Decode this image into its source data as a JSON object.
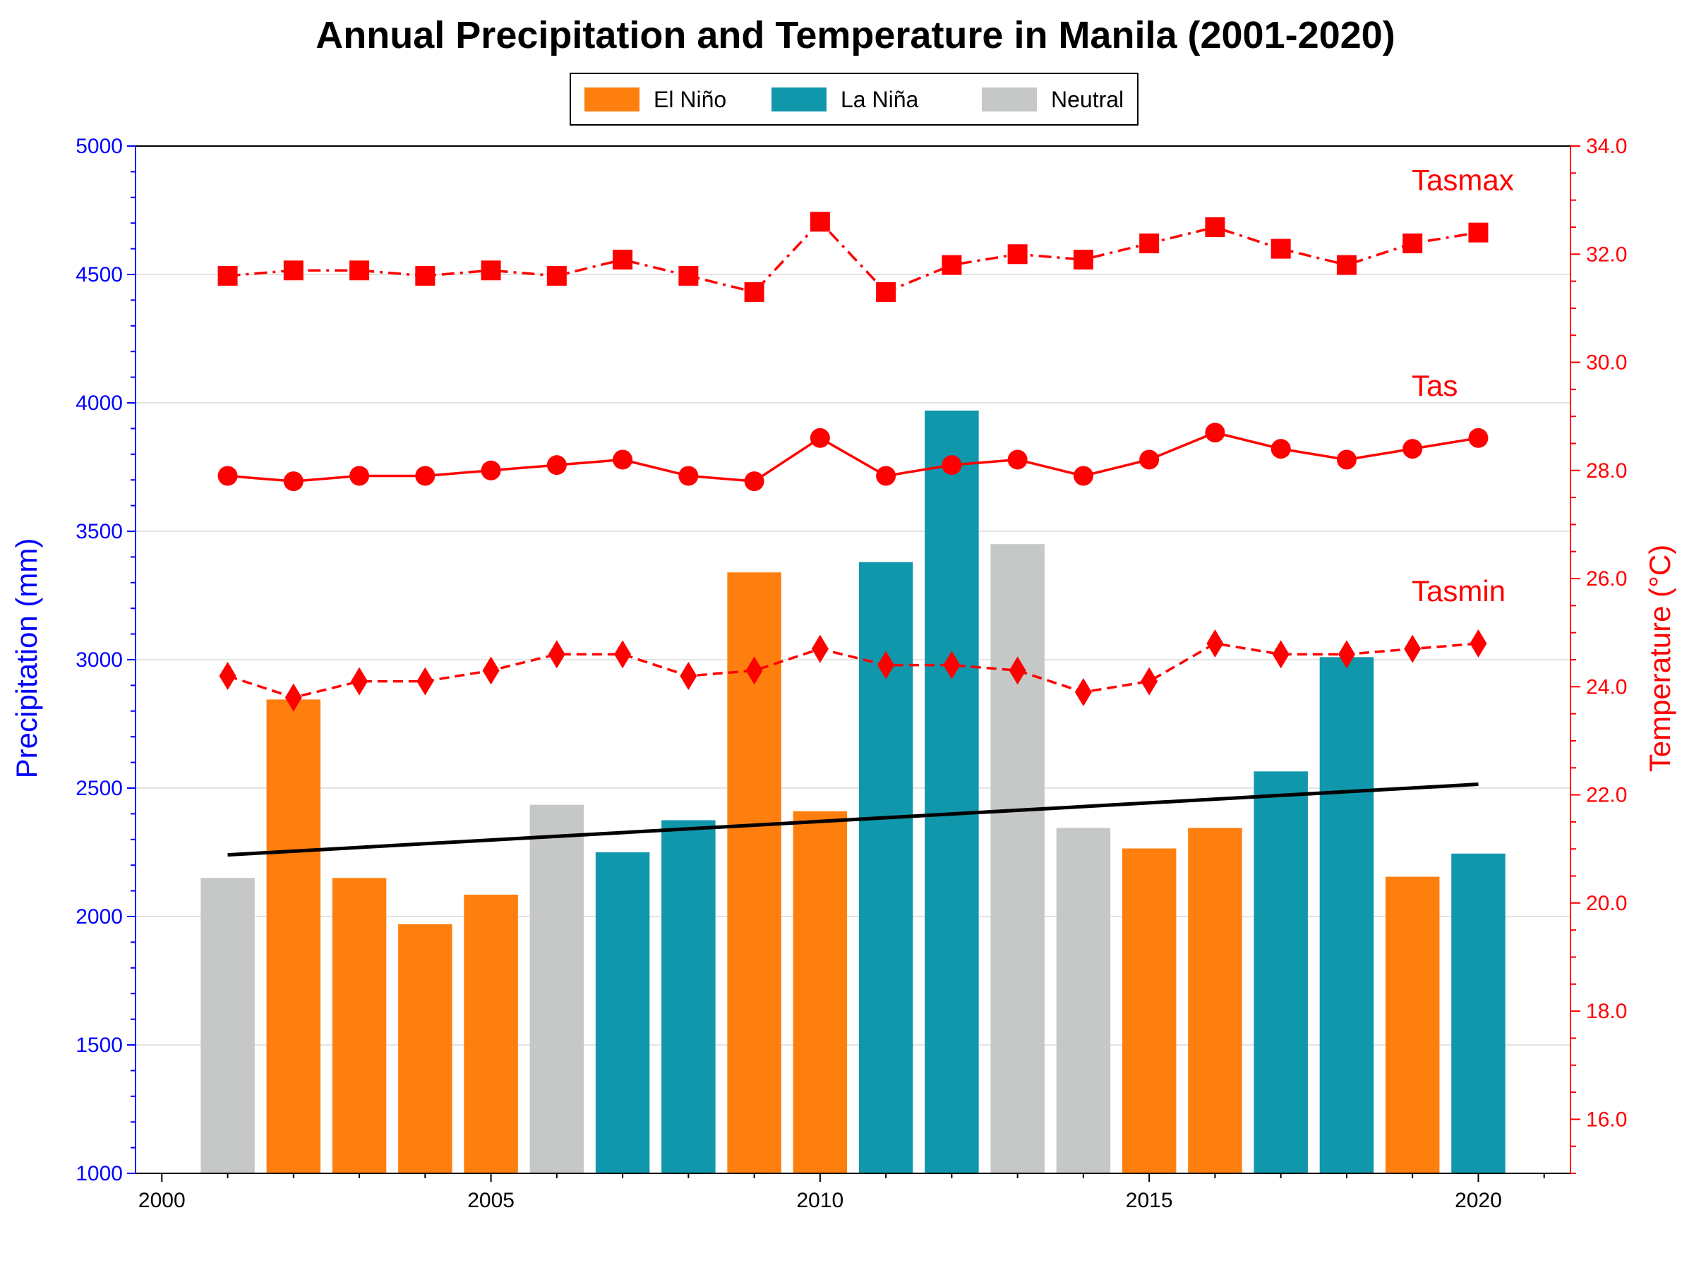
{
  "chart_data": {
    "type": "bar",
    "title": "Annual Precipitation and Temperature in Manila (2001-2020)",
    "x": [
      2001,
      2002,
      2003,
      2004,
      2005,
      2006,
      2007,
      2008,
      2009,
      2010,
      2011,
      2012,
      2013,
      2014,
      2015,
      2016,
      2017,
      2018,
      2019,
      2020
    ],
    "xlim": [
      1999.6,
      2021.4
    ],
    "x_ticks": [
      2000,
      2005,
      2010,
      2015,
      2020
    ],
    "y_left": {
      "label": "Precipitation (mm)",
      "lim": [
        1000,
        5000
      ],
      "ticks": [
        1000,
        1500,
        2000,
        2500,
        3000,
        3500,
        4000,
        4500,
        5000
      ],
      "color": "#0000ff"
    },
    "y_right": {
      "label": "Temperature (°C)",
      "lim": [
        15,
        34
      ],
      "ticks": [
        "16.0",
        "18.0",
        "20.0",
        "22.0",
        "24.0",
        "26.0",
        "28.0",
        "30.0",
        "32.0",
        "34.0"
      ],
      "color": "#ff0000"
    },
    "grid": "horizontal",
    "legend_position": "top-center",
    "categories": {
      "El Niño": "#ff7f0e",
      "La Niña": "#1197ac",
      "Neutral": "#c5c8c7"
    },
    "legend": [
      "El Niño",
      "La Niña",
      "Neutral"
    ],
    "precipitation": [
      2150,
      2845,
      2150,
      1970,
      2085,
      2435,
      2250,
      2375,
      3340,
      2410,
      3380,
      3970,
      3450,
      2345,
      2265,
      2345,
      2565,
      3010,
      2155,
      2245
    ],
    "enso_phase": [
      "Neutral",
      "El Niño",
      "El Niño",
      "El Niño",
      "El Niño",
      "Neutral",
      "La Niña",
      "La Niña",
      "El Niño",
      "El Niño",
      "La Niña",
      "La Niña",
      "Neutral",
      "Neutral",
      "El Niño",
      "El Niño",
      "La Niña",
      "La Niña",
      "El Niño",
      "La Niña"
    ],
    "trend_line": {
      "x": [
        2001,
        2020
      ],
      "y": [
        2240,
        2515
      ],
      "color": "#000000"
    },
    "series": [
      {
        "name": "Tasmax",
        "style": "dashdot",
        "marker": "square",
        "color": "#ff0000",
        "values": [
          31.6,
          31.7,
          31.7,
          31.6,
          31.7,
          31.6,
          31.9,
          31.6,
          31.3,
          32.6,
          31.3,
          31.8,
          32.0,
          31.9,
          32.2,
          32.5,
          32.1,
          31.8,
          32.2,
          32.4
        ]
      },
      {
        "name": "Tas",
        "style": "solid",
        "marker": "circle",
        "color": "#ff0000",
        "values": [
          27.9,
          27.8,
          27.9,
          27.9,
          28.0,
          28.1,
          28.2,
          27.9,
          27.8,
          28.6,
          27.9,
          28.1,
          28.2,
          27.9,
          28.2,
          28.7,
          28.4,
          28.2,
          28.4,
          28.6
        ]
      },
      {
        "name": "Tasmin",
        "style": "dashed",
        "marker": "diamond",
        "color": "#ff0000",
        "values": [
          24.2,
          23.8,
          24.1,
          24.1,
          24.3,
          24.6,
          24.6,
          24.2,
          24.3,
          24.7,
          24.4,
          24.4,
          24.3,
          23.9,
          24.1,
          24.8,
          24.6,
          24.6,
          24.7,
          24.8
        ]
      }
    ]
  }
}
